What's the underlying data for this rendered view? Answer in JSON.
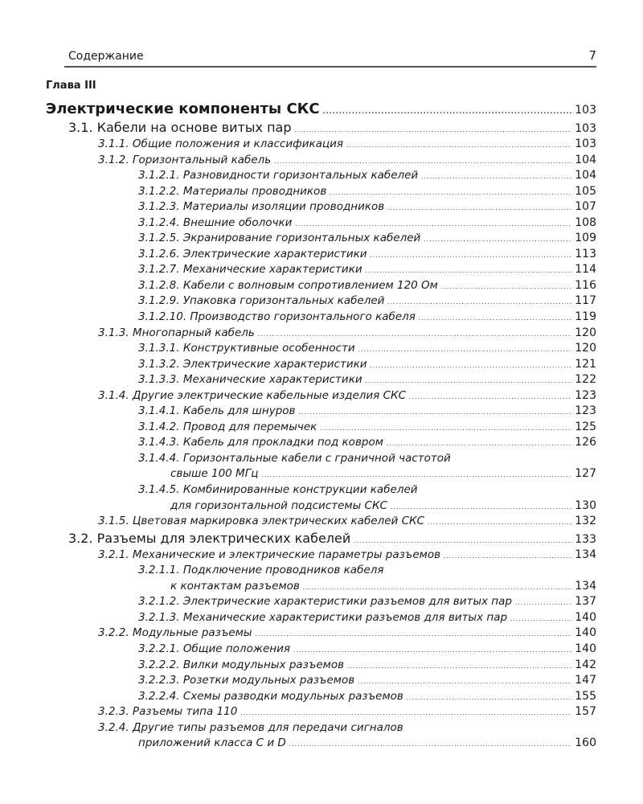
{
  "header": {
    "title": "Содержание",
    "page_number": "7"
  },
  "chapter": "Глава III",
  "entries": [
    {
      "level": 0,
      "text": "Электрические компоненты СКС",
      "page": "103"
    },
    {
      "level": 1,
      "text": "3.1. Кабели на основе витых пар",
      "page": "103"
    },
    {
      "level": 2,
      "text": "3.1.1. Общие положения и классификация",
      "page": "103"
    },
    {
      "level": 2,
      "text": "3.1.2. Горизонтальный кабель",
      "page": "104"
    },
    {
      "level": 3,
      "text": "3.1.2.1. Разновидности горизонтальных кабелей",
      "page": "104"
    },
    {
      "level": 3,
      "text": "3.1.2.2. Материалы проводников",
      "page": "105"
    },
    {
      "level": 3,
      "text": "3.1.2.3. Материалы изоляции проводников",
      "page": "107"
    },
    {
      "level": 3,
      "text": "3.1.2.4. Внешние оболочки",
      "page": "108"
    },
    {
      "level": 3,
      "text": "3.1.2.5. Экранирование горизонтальных кабелей",
      "page": "109"
    },
    {
      "level": 3,
      "text": "3.1.2.6. Электрические характеристики",
      "page": "113"
    },
    {
      "level": 3,
      "text": "3.1.2.7. Механические характеристики",
      "page": "114"
    },
    {
      "level": 3,
      "text": "3.1.2.8. Кабели с волновым сопротивлением 120 Ом",
      "page": "116"
    },
    {
      "level": 3,
      "text": "3.1.2.9. Упаковка горизонтальных кабелей",
      "page": "117"
    },
    {
      "level": 3,
      "text": "3.1.2.10. Производство горизонтального кабеля",
      "page": "119"
    },
    {
      "level": 2,
      "text": "3.1.3. Многопарный кабель",
      "page": "120"
    },
    {
      "level": 3,
      "text": "3.1.3.1. Конструктивные особенности",
      "page": "120"
    },
    {
      "level": 3,
      "text": "3.1.3.2. Электрические характеристики",
      "page": "121"
    },
    {
      "level": 3,
      "text": "3.1.3.3. Механические характеристики",
      "page": "122"
    },
    {
      "level": 2,
      "text": "3.1.4. Другие электрические кабельные изделия СКС",
      "page": "123"
    },
    {
      "level": 3,
      "text": "3.1.4.1. Кабель для шнуров",
      "page": "123"
    },
    {
      "level": 3,
      "text": "3.1.4.2. Провод для перемычек",
      "page": "125"
    },
    {
      "level": 3,
      "text": "3.1.4.3. Кабель для прокладки под ковром",
      "page": "126"
    },
    {
      "level": 3,
      "text": "3.1.4.4.  Горизонтальные кабели с граничной частотой",
      "continuation": "свыше 100 МГц",
      "page": "127"
    },
    {
      "level": 3,
      "text": "3.1.4.5.  Комбинированные конструкции кабелей",
      "continuation": "для горизонтальной подсистемы СКС",
      "page": "130"
    },
    {
      "level": 2,
      "text": "3.1.5. Цветовая маркировка электрических кабелей СКС",
      "page": "132"
    },
    {
      "level": 1,
      "text": "3.2. Разъемы для электрических кабелей",
      "page": "133"
    },
    {
      "level": 2,
      "text": "3.2.1. Механические и электрические параметры разъемов",
      "page": "134"
    },
    {
      "level": 3,
      "text": "3.2.1.1.  Подключение проводников кабеля",
      "continuation": "к контактам разъемов",
      "page": "134"
    },
    {
      "level": 3,
      "text": "3.2.1.2.  Электрические характеристики разъемов для витых пар",
      "page": "137"
    },
    {
      "level": 3,
      "text": "3.2.1.3.  Механические характеристики разъемов для витых пар",
      "page": "140"
    },
    {
      "level": 2,
      "text": "3.2.2. Модульные разъемы",
      "page": "140"
    },
    {
      "level": 3,
      "text": "3.2.2.1. Общие положения",
      "page": "140"
    },
    {
      "level": 3,
      "text": "3.2.2.2. Вилки модульных разъемов",
      "page": "142"
    },
    {
      "level": 3,
      "text": "3.2.2.3. Розетки модульных разъемов",
      "page": "147"
    },
    {
      "level": 3,
      "text": "3.2.2.4. Схемы разводки модульных разъемов",
      "page": "155"
    },
    {
      "level": 2,
      "text": "3.2.3. Разъемы типа 110",
      "page": "157"
    },
    {
      "level": 2,
      "text": "3.2.4. Другие типы разъемов для передачи сигналов",
      "continuation": "приложений класса С и D",
      "page": "160"
    }
  ]
}
